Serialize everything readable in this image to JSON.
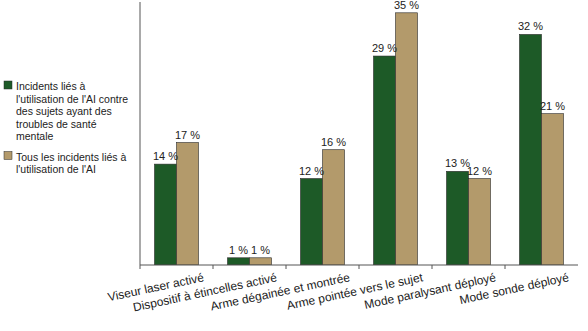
{
  "chart_data": {
    "type": "bar",
    "categories": [
      "Viseur laser activé",
      "Dispositif à étincelles activé",
      "Arme dégainée et montrée",
      "Arme pointée vers le sujet",
      "Mode paralysant déployé",
      "Mode sonde déployé"
    ],
    "series": [
      {
        "name": "Incidents liés à l'utilisation de l'AI contre des sujets ayant des troubles de santé mentale",
        "color": "#1d5a27",
        "values": [
          14,
          1,
          12,
          29,
          13,
          32
        ],
        "value_labels": [
          "14 %",
          "1 %",
          "12 %",
          "29 %",
          "13 %",
          "32 %"
        ]
      },
      {
        "name": "Tous les incidents liés à l'utilisation de l'AI",
        "color": "#b39a6b",
        "values": [
          17,
          1,
          16,
          35,
          12,
          21
        ],
        "value_labels": [
          "17 %",
          "1 %",
          "16 %",
          "35 %",
          "12 %",
          "21 %"
        ]
      }
    ],
    "ylim": [
      0,
      36.5
    ],
    "data_labels": true,
    "tick_labels": "x",
    "legend": "left",
    "grid": false
  }
}
